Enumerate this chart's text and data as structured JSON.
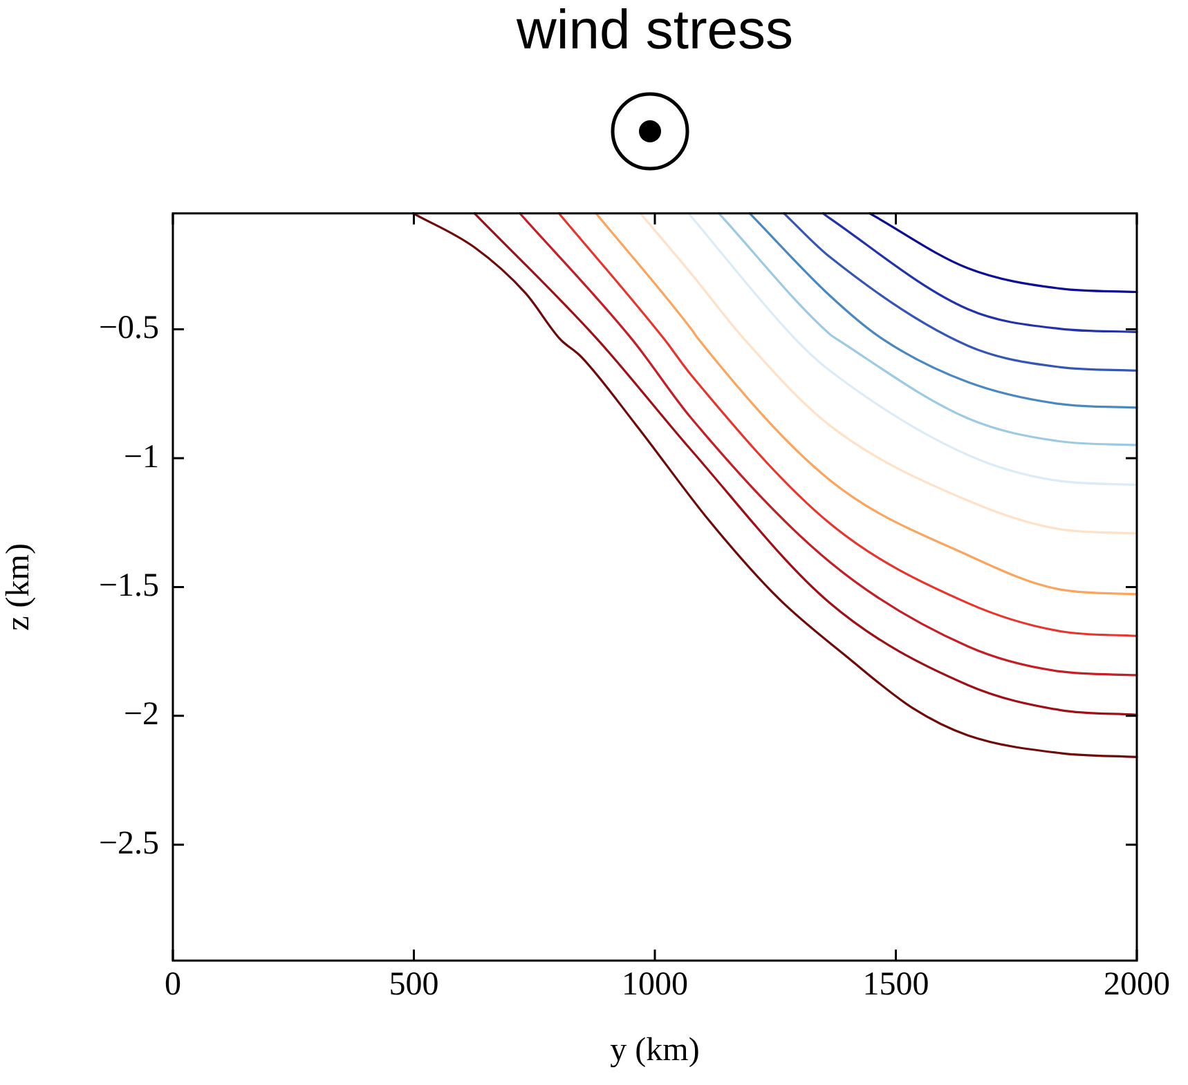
{
  "chart_data": {
    "type": "line",
    "title": "wind stress",
    "xlabel": "y (km)",
    "ylabel": "z (km)",
    "xlim": [
      0,
      2000
    ],
    "ylim": [
      -2.95,
      -0.05
    ],
    "xticks": [
      0,
      500,
      1000,
      1500,
      2000
    ],
    "yticks": [
      {
        "value": -2.5,
        "label": "−2.5"
      },
      {
        "value": -2,
        "label": "−2"
      },
      {
        "value": -1.5,
        "label": "−1.5"
      },
      {
        "value": -1,
        "label": "−1"
      },
      {
        "value": -0.5,
        "label": "−0.5"
      }
    ],
    "grid": false,
    "legend": false,
    "marker": "none",
    "line_style": "solid",
    "series": [
      {
        "color": "#0c0c94",
        "x": [
          1446,
          1650,
          1842,
          2000
        ],
        "values": [
          -0.05,
          -0.263,
          -0.342,
          -0.355
        ]
      },
      {
        "color": "#2233aa",
        "x": [
          1349,
          1363,
          1650,
          1842,
          2000
        ],
        "values": [
          -0.05,
          -0.069,
          -0.422,
          -0.498,
          -0.51
        ]
      },
      {
        "color": "#3656b6",
        "x": [
          1268,
          1363,
          1650,
          1842,
          2000
        ],
        "values": [
          -0.05,
          -0.219,
          -0.564,
          -0.647,
          -0.66
        ]
      },
      {
        "color": "#4a88c0",
        "x": [
          1197,
          1363,
          1472,
          1650,
          1842,
          2000
        ],
        "values": [
          -0.05,
          -0.369,
          -0.537,
          -0.705,
          -0.79,
          -0.804
        ]
      },
      {
        "color": "#9ccae2",
        "x": [
          1133,
          1363,
          1377,
          1650,
          1842,
          2000
        ],
        "values": [
          -0.05,
          -0.519,
          -0.537,
          -0.846,
          -0.935,
          -0.949
        ]
      },
      {
        "color": "#dcecf6",
        "x": [
          1070,
          1291,
          1363,
          1650,
          1842,
          2000
        ],
        "values": [
          -0.05,
          -0.537,
          -0.66,
          -0.988,
          -1.089,
          -1.103
        ]
      },
      {
        "color": "#fde2c8",
        "x": [
          970,
          1076,
          1185,
          1363,
          1650,
          1842,
          2000
        ],
        "values": [
          -0.05,
          -0.285,
          -0.537,
          -0.873,
          -1.165,
          -1.276,
          -1.292
        ]
      },
      {
        "color": "#fca35c",
        "x": [
          878,
          1076,
          1090,
          1363,
          1650,
          1842,
          2000
        ],
        "values": [
          -0.05,
          -0.5,
          -0.537,
          -1.085,
          -1.377,
          -1.51,
          -1.528
        ]
      },
      {
        "color": "#e8352c",
        "x": [
          801,
          1019,
          1076,
          1363,
          1650,
          1842,
          2000
        ],
        "values": [
          -0.05,
          -0.537,
          -0.679,
          -1.253,
          -1.563,
          -1.672,
          -1.69
        ]
      },
      {
        "color": "#c41e26",
        "x": [
          720,
          952,
          1076,
          1363,
          1650,
          1842,
          2000
        ],
        "values": [
          -0.05,
          -0.537,
          -0.846,
          -1.403,
          -1.731,
          -1.828,
          -1.842
        ]
      },
      {
        "color": "#9e1016",
        "x": [
          626,
          880,
          1076,
          1363,
          1650,
          1842,
          2000
        ],
        "values": [
          -0.05,
          -0.537,
          -0.97,
          -1.562,
          -1.881,
          -1.978,
          -1.996
        ]
      },
      {
        "color": "#6e0a0a",
        "x": [
          499,
          626,
          732,
          803,
          847,
          961,
          1113,
          1257,
          1400,
          1535,
          1650,
          1842,
          2000
        ],
        "values": [
          -0.05,
          -0.182,
          -0.36,
          -0.537,
          -0.606,
          -0.871,
          -1.243,
          -1.545,
          -1.773,
          -1.97,
          -2.076,
          -2.145,
          -2.16
        ]
      }
    ]
  }
}
